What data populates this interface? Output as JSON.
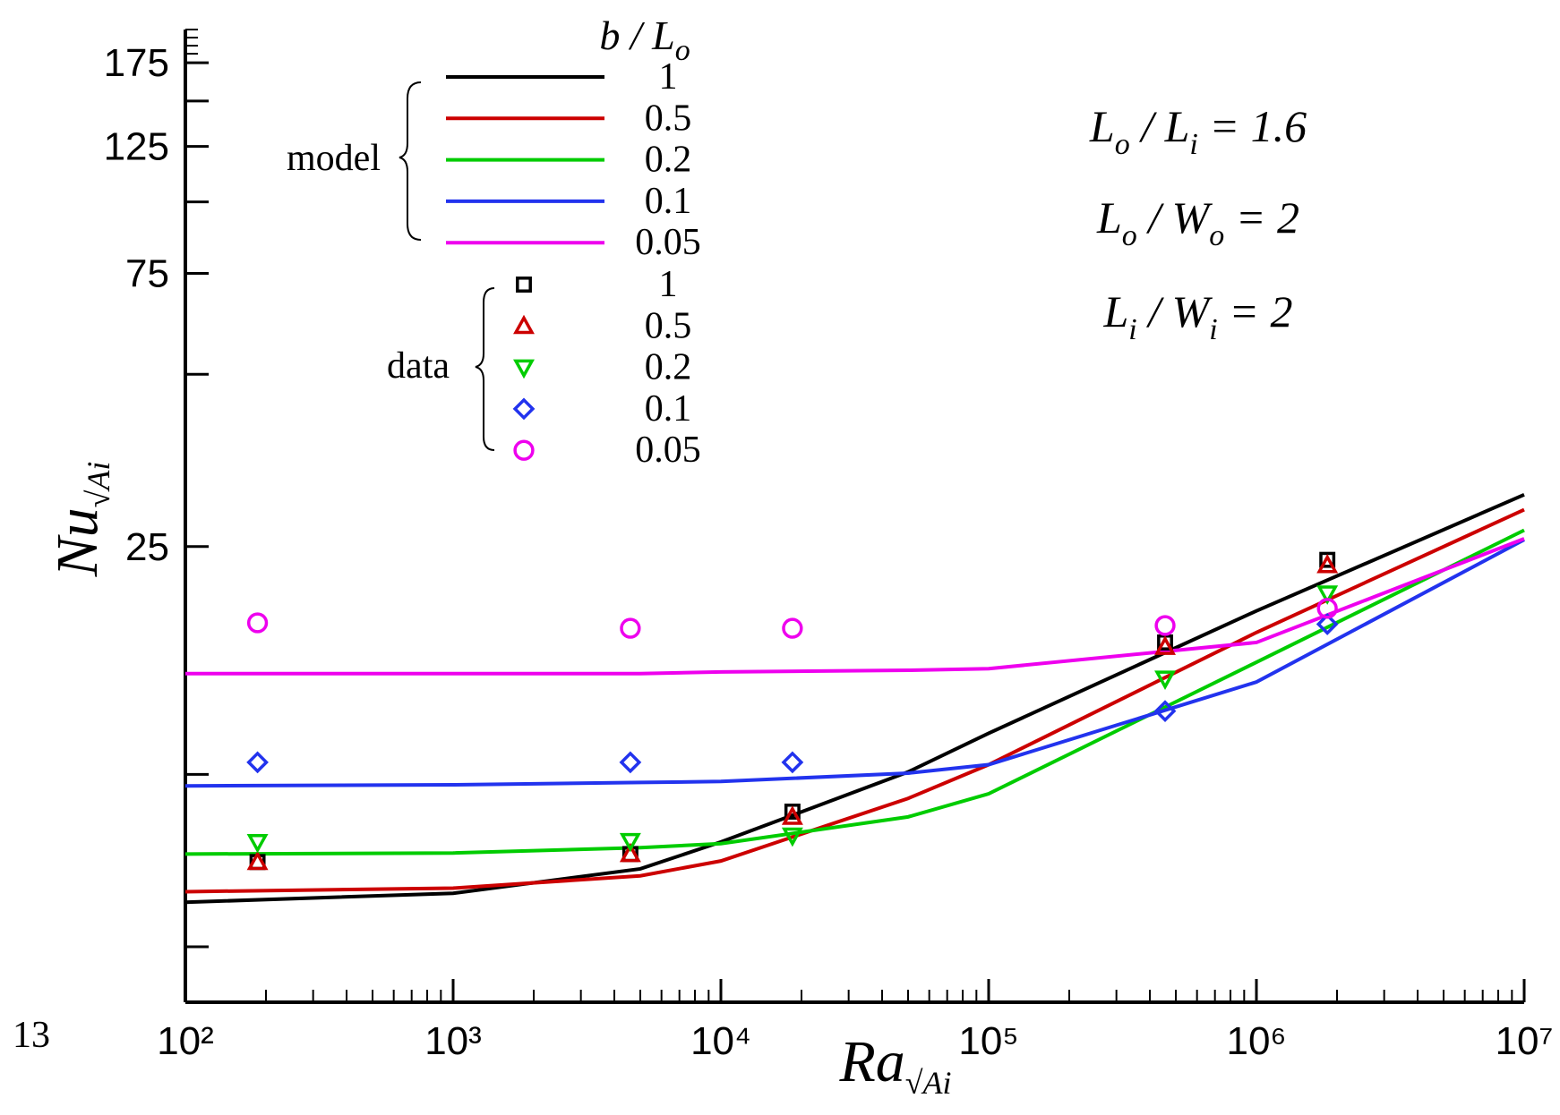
{
  "chart_data": {
    "type": "line",
    "x_label": {
      "main": "Ra",
      "sub": "√Ai"
    },
    "y_label": {
      "main": "Nu",
      "sub": "√Ai"
    },
    "xscale": "log",
    "yscale": "log",
    "xlim": [
      100,
      10000000
    ],
    "xticks": [
      {
        "value": 100,
        "label": "10²"
      },
      {
        "value": 1000,
        "label": "10³"
      },
      {
        "value": 10000,
        "label": "10⁴"
      },
      {
        "value": 100000,
        "label": "10⁵"
      },
      {
        "value": 1000000,
        "label": "10⁶"
      },
      {
        "value": 10000000,
        "label": "10⁷"
      }
    ],
    "ylim": [
      4,
      200
    ],
    "yticks": [
      25,
      75,
      125,
      175
    ],
    "yminor_ticks": [
      5,
      10,
      50,
      100,
      150
    ],
    "legend": {
      "title": {
        "main": "b / L",
        "sub": "o"
      },
      "groups": [
        "model",
        "data"
      ]
    },
    "series": [
      {
        "name": "1",
        "group": "model",
        "color": "#000000",
        "x": [
          100,
          1000,
          5000,
          10000,
          50000,
          100000,
          1000000,
          10000000
        ],
        "values": [
          5.98,
          6.2,
          6.84,
          7.62,
          10.1,
          11.8,
          19.3,
          30.8
        ]
      },
      {
        "name": "0.5",
        "group": "model",
        "color": "#cc0000",
        "x": [
          100,
          1000,
          5000,
          10000,
          50000,
          100000,
          1000000,
          10000000
        ],
        "values": [
          6.24,
          6.33,
          6.65,
          7.06,
          9.08,
          10.4,
          17.7,
          29.0
        ]
      },
      {
        "name": "0.2",
        "group": "model",
        "color": "#00cc00",
        "x": [
          100,
          1000,
          5000,
          10000,
          50000,
          100000,
          1000000,
          10000000
        ],
        "values": [
          7.26,
          7.29,
          7.45,
          7.57,
          8.43,
          9.25,
          15.7,
          26.7
        ]
      },
      {
        "name": "0.1",
        "group": "model",
        "color": "#2233ee",
        "x": [
          100,
          1000,
          5000,
          10000,
          50000,
          100000,
          1000000,
          10000000
        ],
        "values": [
          9.55,
          9.59,
          9.68,
          9.72,
          10.05,
          10.4,
          14.5,
          25.7
        ]
      },
      {
        "name": "0.05",
        "group": "model",
        "color": "#ee00ee",
        "x": [
          100,
          1000,
          5000,
          10000,
          50000,
          100000,
          1000000,
          10000000
        ],
        "values": [
          15.0,
          15.0,
          15.0,
          15.1,
          15.2,
          15.3,
          17.0,
          25.8
        ]
      },
      {
        "name": "1",
        "group": "data",
        "marker": "square",
        "color": "#000000",
        "x": [
          186,
          4590,
          18500,
          456000,
          1840000
        ],
        "values": [
          7.03,
          7.26,
          8.61,
          17.0,
          23.7
        ]
      },
      {
        "name": "0.5",
        "group": "data",
        "marker": "triangle-up",
        "color": "#cc0000",
        "x": [
          186,
          4590,
          18500,
          456000,
          1840000
        ],
        "values": [
          7.03,
          7.26,
          8.43,
          16.7,
          23.2
        ]
      },
      {
        "name": "0.2",
        "group": "data",
        "marker": "triangle-down",
        "color": "#00cc00",
        "x": [
          186,
          4590,
          18500,
          456000,
          1840000
        ],
        "values": [
          7.62,
          7.65,
          7.82,
          14.7,
          20.7
        ]
      },
      {
        "name": "0.1",
        "group": "data",
        "marker": "diamond",
        "color": "#2233ee",
        "x": [
          186,
          4590,
          18500,
          456000,
          1840000
        ],
        "values": [
          10.5,
          10.5,
          10.5,
          12.9,
          18.3
        ]
      },
      {
        "name": "0.05",
        "group": "data",
        "marker": "circle",
        "color": "#ee00ee",
        "x": [
          186,
          4590,
          18500,
          456000,
          1840000
        ],
        "values": [
          18.4,
          18.0,
          18.0,
          18.2,
          19.5
        ]
      }
    ],
    "annotations": [
      [
        {
          "t": "L"
        },
        {
          "sub": "o"
        },
        {
          "t": " / L"
        },
        {
          "sub": "i"
        },
        {
          "t": " = 1.6"
        }
      ],
      [
        {
          "t": "L"
        },
        {
          "sub": "o"
        },
        {
          "t": " / W"
        },
        {
          "sub": "o"
        },
        {
          "t": " = 2"
        }
      ],
      [
        {
          "t": "L"
        },
        {
          "sub": "i"
        },
        {
          "t": " / W"
        },
        {
          "sub": "i"
        },
        {
          "t": " = 2"
        }
      ]
    ],
    "page_number": "13"
  }
}
